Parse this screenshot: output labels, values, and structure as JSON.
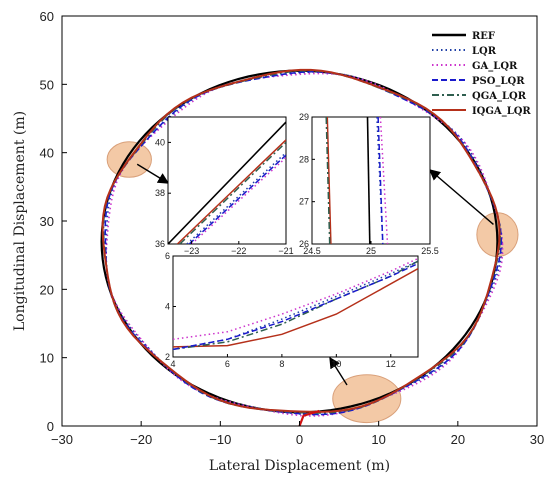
{
  "chart_data": {
    "type": "line",
    "xlabel": "Lateral Displacement (m)",
    "ylabel": "Longitudinal Displacement (m)",
    "xlim": [
      -30,
      30
    ],
    "ylim": [
      0,
      60
    ],
    "xticks": [
      -30,
      -20,
      -10,
      0,
      10,
      20,
      30
    ],
    "yticks": [
      0,
      10,
      20,
      30,
      40,
      50,
      60
    ],
    "grid": false,
    "legend_position": "top-right",
    "series": [
      {
        "name": "REF",
        "color": "#000000",
        "style": "solid",
        "center": [
          0,
          27
        ],
        "radii": [
          25,
          25
        ],
        "offset": [
          0,
          0
        ]
      },
      {
        "name": "LQR",
        "color": "#1f3fa6",
        "style": "dotted",
        "center": [
          0,
          27
        ],
        "radii": [
          25,
          25
        ],
        "offset": [
          0.35,
          -0.25
        ]
      },
      {
        "name": "GA_LQR",
        "color": "#cc33cc",
        "style": "dotted",
        "center": [
          0,
          27
        ],
        "radii": [
          25,
          25
        ],
        "offset": [
          0.45,
          -0.35
        ]
      },
      {
        "name": "PSO_LQR",
        "color": "#1a1acc",
        "style": "dashed",
        "center": [
          0,
          27
        ],
        "radii": [
          25,
          25
        ],
        "offset": [
          0.25,
          -0.3
        ]
      },
      {
        "name": "QGA_LQR",
        "color": "#2f5f4f",
        "style": "dashdot",
        "center": [
          0,
          27
        ],
        "radii": [
          25,
          25
        ],
        "offset": [
          0.15,
          -0.2
        ]
      },
      {
        "name": "IQGA_LQR",
        "color": "#b5301a",
        "style": "solid",
        "center": [
          0,
          27
        ],
        "radii": [
          25,
          25
        ],
        "offset": [
          0.1,
          -0.1
        ]
      }
    ],
    "highlights": [
      {
        "center": [
          -21.5,
          39
        ],
        "radius": [
          2.8,
          2.6
        ],
        "color": "#f3c9a6"
      },
      {
        "center": [
          25,
          28
        ],
        "radius": [
          2.6,
          3.2
        ],
        "color": "#f3c9a6"
      },
      {
        "center": [
          8.5,
          4
        ],
        "radius": [
          4.3,
          3.5
        ],
        "color": "#f3c9a6"
      }
    ],
    "insets": [
      {
        "name": "upper-left zoom",
        "xlim": [
          -23.5,
          -21
        ],
        "ylim": [
          36,
          41
        ],
        "xticks": [
          -23,
          -22,
          -21
        ],
        "yticks": [
          36,
          38,
          40
        ],
        "lines": [
          {
            "series": "REF",
            "points": [
              [
                -23.5,
                36.0
              ],
              [
                -21.0,
                40.8
              ]
            ]
          },
          {
            "series": "IQGA_LQR",
            "points": [
              [
                -23.3,
                36.0
              ],
              [
                -21.0,
                40.1
              ]
            ]
          },
          {
            "series": "QGA_LQR",
            "points": [
              [
                -23.25,
                36.0
              ],
              [
                -21.0,
                40.0
              ]
            ]
          },
          {
            "series": "LQR",
            "points": [
              [
                -23.1,
                36.0
              ],
              [
                -21.0,
                39.6
              ]
            ]
          },
          {
            "series": "PSO_LQR",
            "points": [
              [
                -23.05,
                36.0
              ],
              [
                -21.0,
                39.5
              ]
            ]
          },
          {
            "series": "GA_LQR",
            "points": [
              [
                -23.0,
                36.0
              ],
              [
                -21.0,
                39.4
              ]
            ]
          }
        ]
      },
      {
        "name": "upper-right zoom",
        "xlim": [
          24.5,
          25.5
        ],
        "ylim": [
          26,
          29
        ],
        "xticks": [
          24.5,
          25.0,
          25.5
        ],
        "yticks": [
          26,
          27,
          28,
          29
        ],
        "lines": [
          {
            "series": "IQGA_LQR",
            "points": [
              [
                24.63,
                29.0
              ],
              [
                24.66,
                26.0
              ]
            ]
          },
          {
            "series": "QGA_LQR",
            "points": [
              [
                24.62,
                29.0
              ],
              [
                24.65,
                26.0
              ]
            ]
          },
          {
            "series": "REF",
            "points": [
              [
                24.97,
                29.0
              ],
              [
                24.99,
                26.0
              ]
            ]
          },
          {
            "series": "LQR",
            "points": [
              [
                25.05,
                29.0
              ],
              [
                25.1,
                26.0
              ]
            ]
          },
          {
            "series": "PSO_LQR",
            "points": [
              [
                25.06,
                29.0
              ],
              [
                25.1,
                26.0
              ]
            ]
          },
          {
            "series": "GA_LQR",
            "points": [
              [
                25.08,
                29.0
              ],
              [
                25.14,
                26.0
              ]
            ]
          }
        ]
      },
      {
        "name": "lower zoom",
        "xlim": [
          4,
          13
        ],
        "ylim": [
          2,
          6
        ],
        "xticks": [
          4,
          6,
          8,
          10,
          12
        ],
        "yticks": [
          2,
          4,
          6
        ],
        "lines": [
          {
            "series": "IQGA_LQR",
            "points": [
              [
                4,
                2.4
              ],
              [
                6,
                2.45
              ],
              [
                8,
                2.9
              ],
              [
                10,
                3.7
              ],
              [
                11.5,
                4.6
              ],
              [
                13,
                5.5
              ]
            ]
          },
          {
            "series": "QGA_LQR",
            "points": [
              [
                4,
                2.3
              ],
              [
                6,
                2.6
              ],
              [
                8,
                3.3
              ],
              [
                10,
                4.3
              ],
              [
                12,
                5.2
              ],
              [
                13,
                5.8
              ]
            ]
          },
          {
            "series": "LQR",
            "points": [
              [
                4,
                2.3
              ],
              [
                6,
                2.7
              ],
              [
                8,
                3.5
              ],
              [
                10,
                4.4
              ],
              [
                12,
                5.3
              ],
              [
                13,
                5.8
              ]
            ]
          },
          {
            "series": "PSO_LQR",
            "points": [
              [
                4,
                2.3
              ],
              [
                6,
                2.7
              ],
              [
                8,
                3.4
              ],
              [
                10,
                4.3
              ],
              [
                12,
                5.2
              ],
              [
                13,
                5.7
              ]
            ]
          },
          {
            "series": "GA_LQR",
            "points": [
              [
                4,
                2.7
              ],
              [
                6,
                3.0
              ],
              [
                8,
                3.7
              ],
              [
                10,
                4.5
              ],
              [
                12,
                5.4
              ],
              [
                13,
                5.9
              ]
            ]
          }
        ]
      }
    ]
  }
}
